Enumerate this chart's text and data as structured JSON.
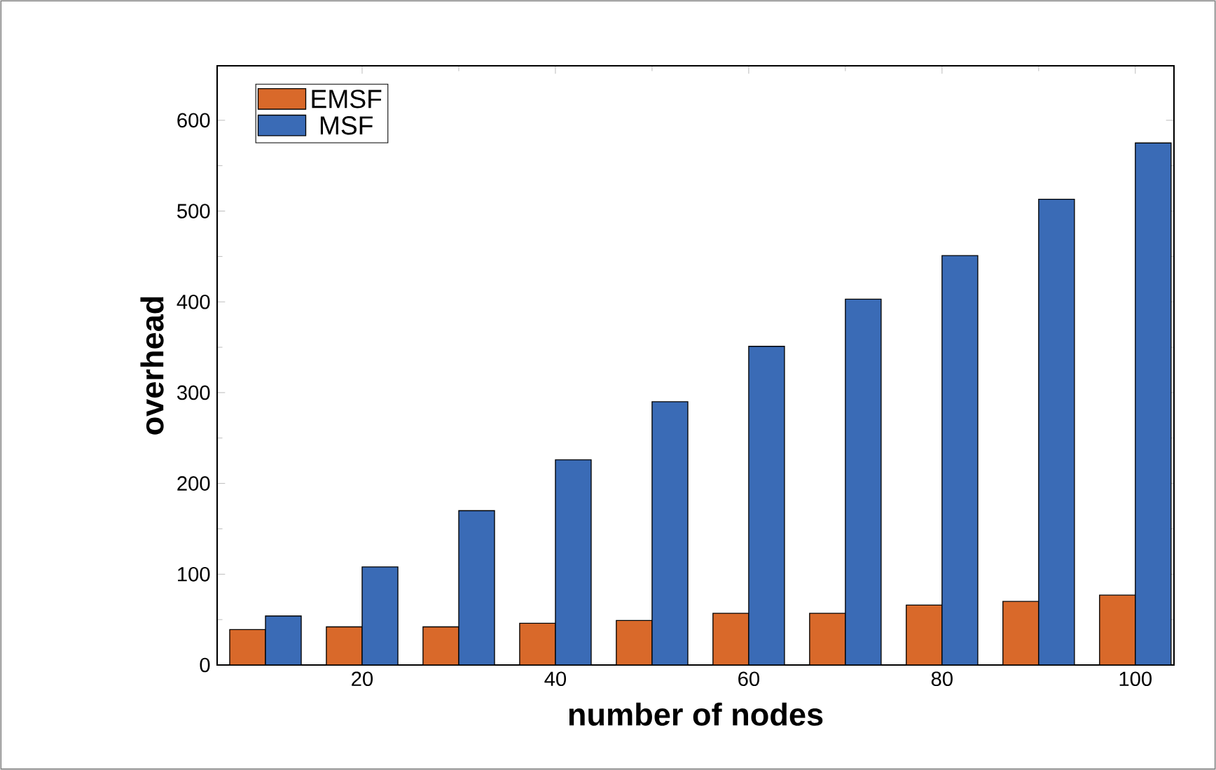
{
  "chart_data": {
    "type": "bar",
    "xlabel": "number of nodes",
    "ylabel": "overhead",
    "x": [
      10,
      20,
      30,
      40,
      50,
      60,
      70,
      80,
      90,
      100
    ],
    "series": [
      {
        "name": "EMSF",
        "color": "#d9692a",
        "values": [
          39,
          42,
          42,
          46,
          49,
          57,
          57,
          66,
          70,
          77
        ]
      },
      {
        "name": "MSF",
        "color": "#3a6bb6",
        "values": [
          54,
          108,
          170,
          226,
          290,
          351,
          403,
          451,
          513,
          575
        ]
      }
    ],
    "xlim": [
      5,
      104
    ],
    "xticks": [
      20,
      40,
      60,
      80,
      100
    ],
    "ylim": [
      0,
      660
    ],
    "yticks": [
      0,
      100,
      200,
      300,
      400,
      500,
      600
    ],
    "grid": false,
    "legend": "top left"
  }
}
